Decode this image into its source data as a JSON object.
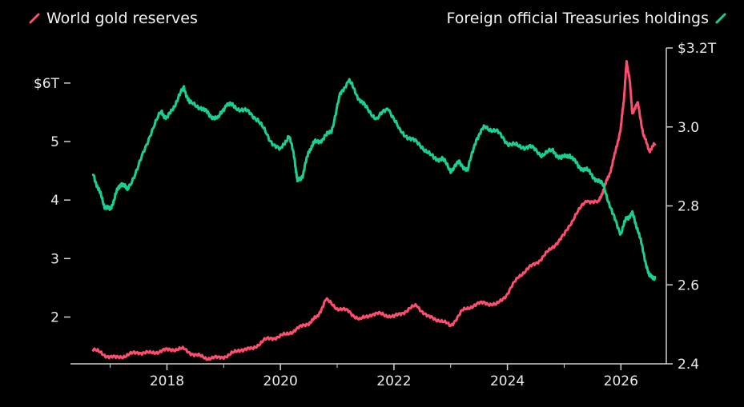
{
  "colors": {
    "background": "#000000",
    "gold": "#ff4d6d",
    "treasuries": "#19d18f",
    "axis": "#cfcfcf",
    "text": "#eaeaea"
  },
  "legend": {
    "gold_label": "World gold reserves",
    "treasuries_label": "Foreign official Treasuries holdings"
  },
  "chart_data": {
    "type": "line",
    "x_ticks": [
      "2018",
      "2020",
      "2022",
      "2024",
      "2026"
    ],
    "left_axis": {
      "ticks": [
        "$6T",
        "5",
        "4",
        "3",
        "2"
      ],
      "tick_values": [
        6,
        5,
        4,
        3,
        2
      ],
      "ylim": [
        1.2,
        6.6
      ]
    },
    "right_axis": {
      "ticks": [
        "$3.2T",
        "3.0",
        "2.8",
        "2.6",
        "2.4"
      ],
      "tick_values": [
        3.2,
        3.0,
        2.8,
        2.6,
        2.4
      ],
      "ylim": [
        2.4,
        3.2
      ]
    },
    "xlim": [
      2016.3,
      2026.8
    ],
    "series": [
      {
        "name": "World gold reserves",
        "axis": "left",
        "color": "#ff4d6d",
        "x": [
          2016.7,
          2016.9,
          2017.1,
          2017.3,
          2017.5,
          2017.7,
          2017.9,
          2018.1,
          2018.3,
          2018.5,
          2018.7,
          2018.9,
          2019.1,
          2019.3,
          2019.5,
          2019.7,
          2019.9,
          2020.1,
          2020.3,
          2020.5,
          2020.65,
          2020.8,
          2021.0,
          2021.2,
          2021.4,
          2021.6,
          2021.8,
          2022.0,
          2022.2,
          2022.4,
          2022.6,
          2022.8,
          2023.0,
          2023.2,
          2023.4,
          2023.6,
          2023.8,
          2024.0,
          2024.2,
          2024.4,
          2024.6,
          2024.8,
          2025.0,
          2025.2,
          2025.4,
          2025.6,
          2025.7,
          2025.8,
          2025.9,
          2026.0,
          2026.05,
          2026.1,
          2026.15,
          2026.2,
          2026.3,
          2026.4,
          2026.5,
          2026.6
        ],
        "values": [
          1.45,
          1.35,
          1.3,
          1.35,
          1.4,
          1.38,
          1.42,
          1.45,
          1.45,
          1.35,
          1.3,
          1.3,
          1.35,
          1.45,
          1.45,
          1.6,
          1.65,
          1.7,
          1.8,
          1.9,
          2.0,
          2.3,
          2.15,
          2.1,
          1.95,
          2.05,
          2.05,
          2.0,
          2.1,
          2.2,
          2.0,
          1.95,
          1.85,
          2.1,
          2.2,
          2.25,
          2.2,
          2.4,
          2.7,
          2.85,
          3.0,
          3.2,
          3.4,
          3.75,
          4.0,
          3.95,
          4.2,
          4.45,
          4.8,
          5.25,
          5.7,
          6.35,
          6.1,
          5.5,
          5.65,
          5.1,
          4.85,
          4.95
        ]
      },
      {
        "name": "Foreign official Treasuries holdings",
        "axis": "right",
        "color": "#19d18f",
        "x": [
          2016.7,
          2016.8,
          2016.9,
          2017.0,
          2017.1,
          2017.2,
          2017.3,
          2017.5,
          2017.7,
          2017.9,
          2018.0,
          2018.15,
          2018.3,
          2018.4,
          2018.6,
          2018.75,
          2018.9,
          2019.05,
          2019.2,
          2019.4,
          2019.6,
          2019.8,
          2020.0,
          2020.15,
          2020.25,
          2020.3,
          2020.4,
          2020.5,
          2020.6,
          2020.75,
          2020.9,
          2021.05,
          2021.2,
          2021.35,
          2021.5,
          2021.7,
          2021.9,
          2022.1,
          2022.3,
          2022.5,
          2022.7,
          2022.85,
          2023.0,
          2023.15,
          2023.3,
          2023.45,
          2023.6,
          2023.8,
          2024.0,
          2024.2,
          2024.4,
          2024.6,
          2024.8,
          2024.95,
          2025.1,
          2025.25,
          2025.4,
          2025.55,
          2025.7,
          2025.85,
          2026.0,
          2026.1,
          2026.2,
          2026.3,
          2026.4,
          2026.5,
          2026.6
        ],
        "values": [
          2.88,
          2.84,
          2.8,
          2.79,
          2.83,
          2.86,
          2.84,
          2.9,
          2.98,
          3.04,
          3.02,
          3.06,
          3.1,
          3.06,
          3.05,
          3.03,
          3.02,
          3.06,
          3.05,
          3.04,
          3.02,
          2.97,
          2.94,
          2.98,
          2.92,
          2.86,
          2.88,
          2.94,
          2.96,
          2.97,
          2.99,
          3.08,
          3.12,
          3.08,
          3.05,
          3.02,
          3.05,
          2.99,
          2.97,
          2.95,
          2.92,
          2.92,
          2.89,
          2.91,
          2.89,
          2.97,
          3.0,
          2.99,
          2.96,
          2.95,
          2.95,
          2.93,
          2.94,
          2.92,
          2.93,
          2.9,
          2.89,
          2.87,
          2.85,
          2.78,
          2.73,
          2.77,
          2.78,
          2.74,
          2.68,
          2.62,
          2.62
        ]
      }
    ],
    "grid": false
  }
}
